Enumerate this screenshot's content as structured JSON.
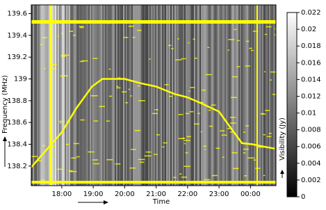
{
  "chart_data": {
    "type": "line",
    "xlabel": "Time",
    "ylabel": "Frequency (MHz)",
    "series": [
      {
        "color": "#ffff00",
        "x": [
          17.03,
          18,
          18.46,
          18.96,
          19.29,
          20,
          20.52,
          21,
          21.6,
          22,
          22.41,
          23,
          23.4,
          23.73,
          24.06,
          24.39,
          24.77
        ],
        "values": [
          138.19,
          138.51,
          138.73,
          138.93,
          139.0,
          139.0,
          138.96,
          138.93,
          138.86,
          138.83,
          138.78,
          138.7,
          138.54,
          138.41,
          138.4,
          138.38,
          138.36
        ]
      }
    ],
    "xlim": [
      17.03,
      24.81
    ],
    "xticks": [
      {
        "value": 18,
        "label": "18:00"
      },
      {
        "value": 19,
        "label": "19:00"
      },
      {
        "value": 20,
        "label": "20:00"
      },
      {
        "value": 21,
        "label": "21:00"
      },
      {
        "value": 22,
        "label": "22:00"
      },
      {
        "value": 23,
        "label": "23:00"
      },
      {
        "value": 24,
        "label": "00:00"
      }
    ],
    "ylim": [
      138.02,
      139.68
    ],
    "yticks": [
      138.2,
      138.4,
      138.6,
      138.8,
      139,
      139.2,
      139.4,
      139.6
    ],
    "colorbar": {
      "label": "Visibility (Jy)",
      "clim": [
        0,
        0.022
      ],
      "ticks": [
        0,
        0.002,
        0.004,
        0.006,
        0.008,
        0.01,
        0.012,
        0.014,
        0.016,
        0.018,
        0.02,
        0.022
      ]
    }
  }
}
